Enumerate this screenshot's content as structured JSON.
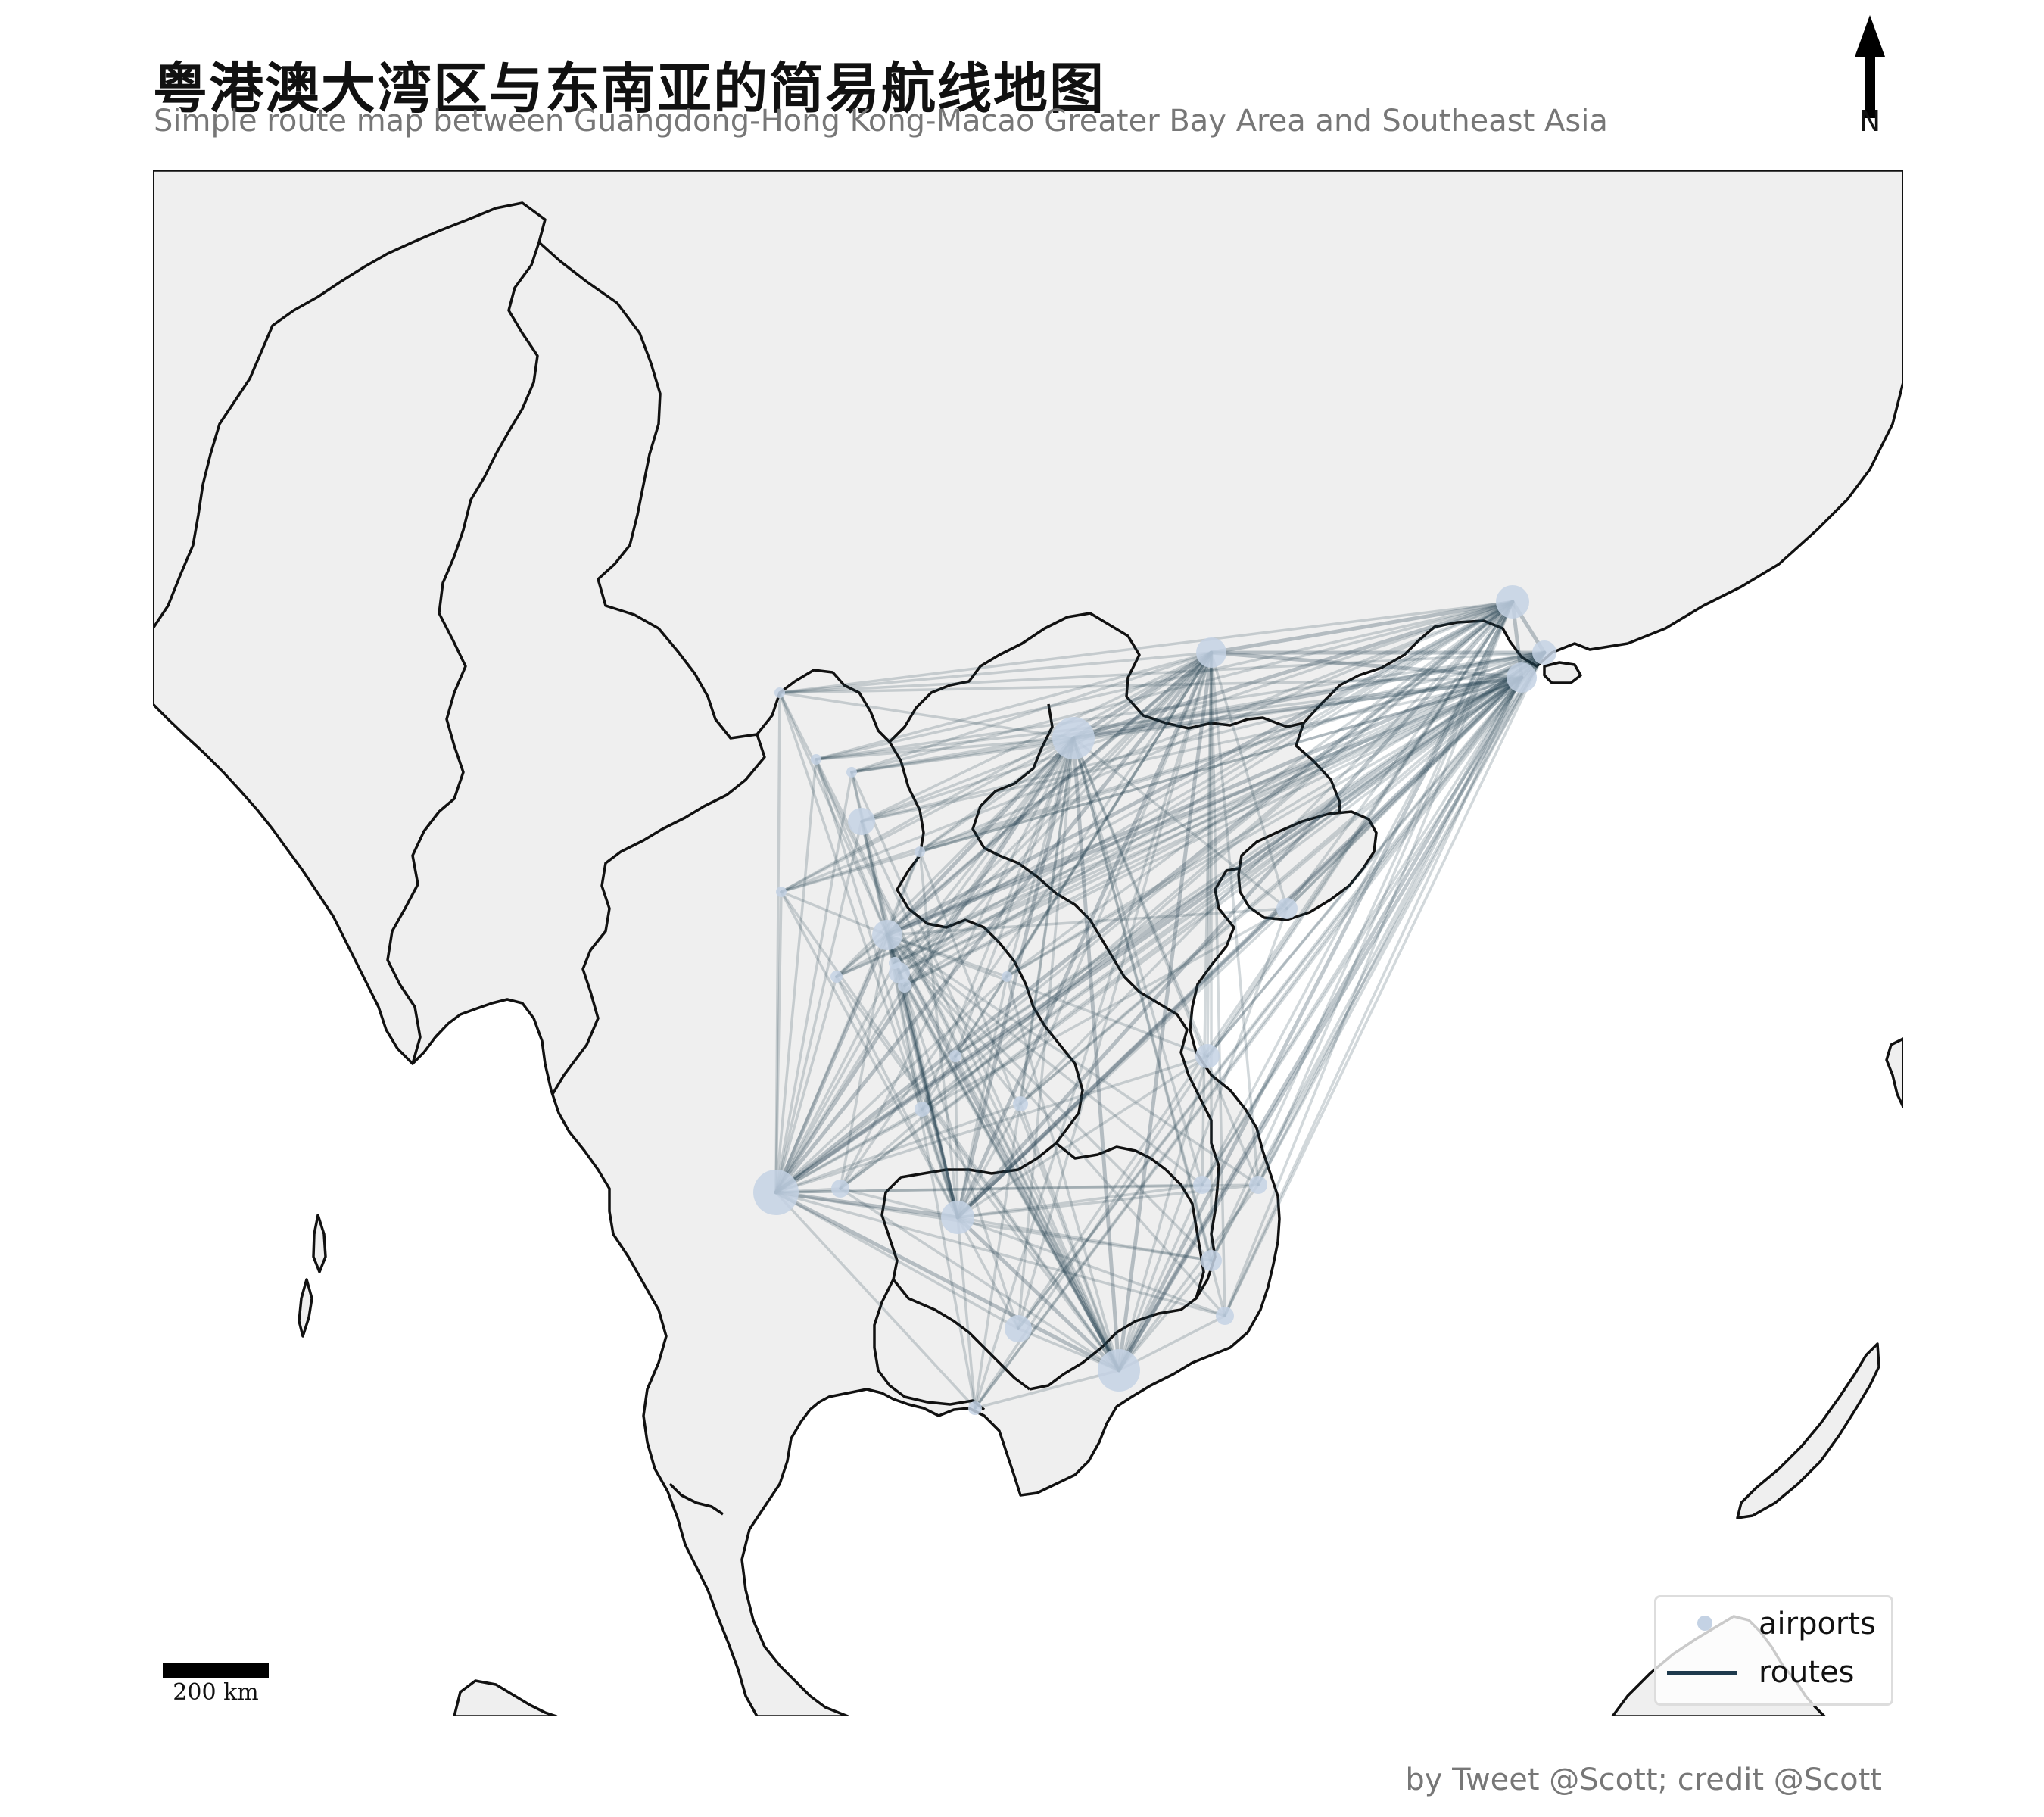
{
  "title": "粤港澳大湾区与东南亚的简易航线地图",
  "subtitle": "Simple route map between Guangdong-Hong Kong-Macao Greater Bay Area and Southeast Asia",
  "north_arrow": {
    "label": "N"
  },
  "legend": {
    "airports": "airports",
    "routes": "routes"
  },
  "scale_bar": {
    "label": "200 km"
  },
  "credit": "by Tweet @Scott; credit @Scott",
  "colors": {
    "land": "#efefef",
    "sea": "#ffffff",
    "border": "#111111",
    "airport": "#c4d2e4",
    "route": "#1e3a4d"
  }
}
